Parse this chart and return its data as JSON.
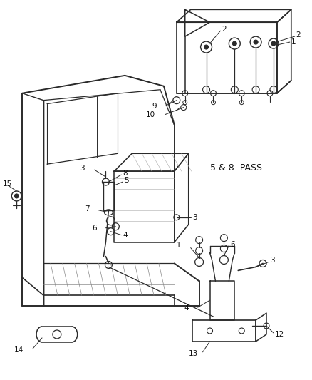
{
  "background_color": "#ffffff",
  "label_5_8_pass": "5 & 8  PASS",
  "figsize": [
    4.39,
    5.33
  ],
  "dpi": 100,
  "line_color": "#2a2a2a",
  "label_color": "#111111"
}
